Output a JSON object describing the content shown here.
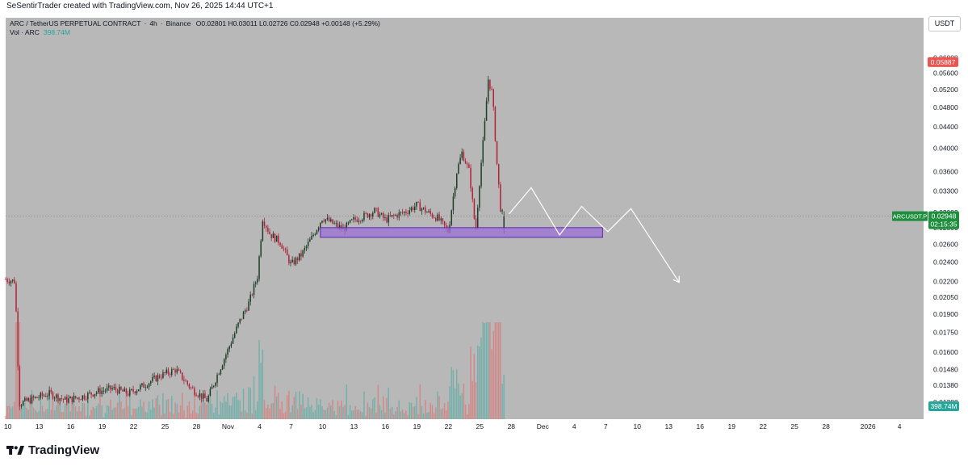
{
  "header": {
    "caption": "SeSentirTrader created with TradingView.com, Nov 26, 2025 14:44 UTC+1"
  },
  "legend": {
    "symbol": "ARC / TetherUS PERPETUAL CONTRACT",
    "timeframe": "4h",
    "exchange": "Binance",
    "ohlc": "O0.02801  H0.03011  L0.02726  C0.02948  +0.00148 (+5.29%)",
    "volume_label": "Vol · ARC",
    "volume_value": "398.74M"
  },
  "toolbar": {
    "currency": "USDT"
  },
  "footer": {
    "brand": "TradingView"
  },
  "colors": {
    "up": "#1f3d28",
    "down": "#b0243b",
    "vol_up": "#26a69a",
    "vol_down": "#ef5350",
    "zone_fill": "#9b6fd6",
    "zone_stroke": "#5c2bb0",
    "projection": "#ffffff",
    "last_price_bg": "#1e8e3e",
    "high_marker_bg": "#ef5350"
  },
  "chart_data": {
    "type": "candlestick",
    "symbol": "ARCUSDT.P",
    "interval": "4h",
    "y_scale": "log",
    "y_range": [
      0.0122,
      0.0635
    ],
    "x_range_days": [
      -21.2,
      66.3
    ],
    "date_origin": "Oct 10, 2025",
    "price_ticks": [
      "0.06000",
      "0.05600",
      "0.05200",
      "0.04800",
      "0.04400",
      "0.04000",
      "0.03600",
      "0.03300",
      "0.03000",
      "0.02800",
      "0.02600",
      "0.02400",
      "0.02200",
      "0.02050",
      "0.01900",
      "0.01750",
      "0.01600",
      "0.01480",
      "0.01380",
      "0.01280"
    ],
    "date_ticks": [
      {
        "label": "10",
        "day": -21
      },
      {
        "label": "13",
        "day": -18
      },
      {
        "label": "16",
        "day": -15
      },
      {
        "label": "19",
        "day": -12
      },
      {
        "label": "22",
        "day": -9
      },
      {
        "label": "25",
        "day": -6
      },
      {
        "label": "28",
        "day": -3
      },
      {
        "label": "Nov",
        "day": 0
      },
      {
        "label": "4",
        "day": 3
      },
      {
        "label": "7",
        "day": 6
      },
      {
        "label": "10",
        "day": 9
      },
      {
        "label": "13",
        "day": 12
      },
      {
        "label": "16",
        "day": 15
      },
      {
        "label": "19",
        "day": 18
      },
      {
        "label": "22",
        "day": 21
      },
      {
        "label": "25",
        "day": 24
      },
      {
        "label": "28",
        "day": 27
      },
      {
        "label": "Dec",
        "day": 30
      },
      {
        "label": "4",
        "day": 33
      },
      {
        "label": "7",
        "day": 36
      },
      {
        "label": "10",
        "day": 39
      },
      {
        "label": "13",
        "day": 42
      },
      {
        "label": "16",
        "day": 45
      },
      {
        "label": "19",
        "day": 48
      },
      {
        "label": "22",
        "day": 51
      },
      {
        "label": "25",
        "day": 54
      },
      {
        "label": "28",
        "day": 57
      },
      {
        "label": "2026",
        "day": 61
      },
      {
        "label": "4",
        "day": 64
      }
    ],
    "close_path": [
      {
        "day": -21.2,
        "close": 0.0222
      },
      {
        "day": -20.3,
        "close": 0.022
      },
      {
        "day": -19.9,
        "close": 0.0127
      },
      {
        "day": -18.5,
        "close": 0.013
      },
      {
        "day": -17.0,
        "close": 0.0133
      },
      {
        "day": -15.5,
        "close": 0.0129
      },
      {
        "day": -14.0,
        "close": 0.0131
      },
      {
        "day": -12.5,
        "close": 0.0134
      },
      {
        "day": -11.0,
        "close": 0.0136
      },
      {
        "day": -9.5,
        "close": 0.0133
      },
      {
        "day": -8.0,
        "close": 0.0138
      },
      {
        "day": -6.5,
        "close": 0.0144
      },
      {
        "day": -5.0,
        "close": 0.0148
      },
      {
        "day": -3.5,
        "close": 0.0136
      },
      {
        "day": -2.0,
        "close": 0.0129
      },
      {
        "day": -1.0,
        "close": 0.0145
      },
      {
        "day": 0.0,
        "close": 0.0162
      },
      {
        "day": 1.0,
        "close": 0.0182
      },
      {
        "day": 2.0,
        "close": 0.02
      },
      {
        "day": 2.8,
        "close": 0.0225
      },
      {
        "day": 3.3,
        "close": 0.0292
      },
      {
        "day": 4.0,
        "close": 0.0272
      },
      {
        "day": 5.0,
        "close": 0.0262
      },
      {
        "day": 6.0,
        "close": 0.0237
      },
      {
        "day": 7.0,
        "close": 0.0248
      },
      {
        "day": 8.0,
        "close": 0.0268
      },
      {
        "day": 9.0,
        "close": 0.0293
      },
      {
        "day": 10.0,
        "close": 0.0285
      },
      {
        "day": 11.0,
        "close": 0.0278
      },
      {
        "day": 12.0,
        "close": 0.029
      },
      {
        "day": 13.0,
        "close": 0.0295
      },
      {
        "day": 14.0,
        "close": 0.0302
      },
      {
        "day": 15.0,
        "close": 0.029
      },
      {
        "day": 16.0,
        "close": 0.0296
      },
      {
        "day": 17.0,
        "close": 0.0301
      },
      {
        "day": 18.0,
        "close": 0.031
      },
      {
        "day": 19.0,
        "close": 0.03
      },
      {
        "day": 20.0,
        "close": 0.0292
      },
      {
        "day": 21.0,
        "close": 0.0275
      },
      {
        "day": 21.8,
        "close": 0.036
      },
      {
        "day": 22.3,
        "close": 0.0392
      },
      {
        "day": 23.0,
        "close": 0.036
      },
      {
        "day": 23.6,
        "close": 0.0275
      },
      {
        "day": 24.0,
        "close": 0.035
      },
      {
        "day": 24.4,
        "close": 0.043
      },
      {
        "day": 24.8,
        "close": 0.0545
      },
      {
        "day": 25.2,
        "close": 0.051
      },
      {
        "day": 25.6,
        "close": 0.038
      },
      {
        "day": 26.0,
        "close": 0.03
      },
      {
        "day": 26.3,
        "close": 0.0295
      }
    ],
    "high": 0.05887,
    "last_close": 0.02948,
    "countdown": "02:15:35",
    "symbol_label": "ARCUSDT.P",
    "volume_last": "398.74M",
    "drawings": {
      "support_zone": {
        "day_start": 8.8,
        "day_end": 35.7,
        "price_low": 0.0268,
        "price_high": 0.028
      },
      "projection": [
        {
          "day": 26.8,
          "price": 0.0298
        },
        {
          "day": 28.9,
          "price": 0.0335
        },
        {
          "day": 31.6,
          "price": 0.0271
        },
        {
          "day": 33.7,
          "price": 0.0308
        },
        {
          "day": 36.2,
          "price": 0.0275
        },
        {
          "day": 38.4,
          "price": 0.0305
        },
        {
          "day": 43.0,
          "price": 0.0219
        }
      ]
    }
  }
}
